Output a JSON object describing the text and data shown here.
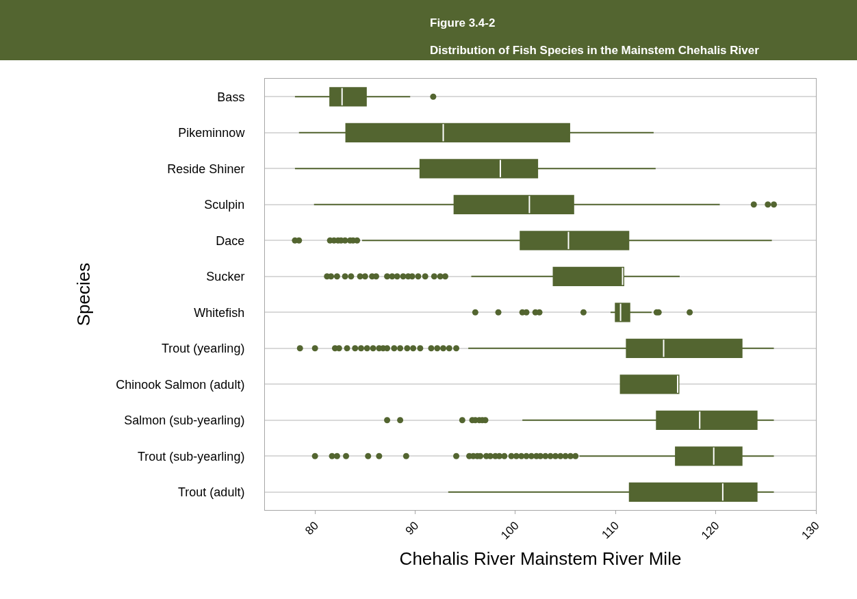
{
  "chart_data": {
    "type": "box",
    "title": "Figure 3.4-2",
    "subtitle": "Distribution of Fish Species in the Mainstem Chehalis River",
    "xlabel": "Chehalis River Mainstem River Mile",
    "ylabel": "Species",
    "orientation": "horizontal",
    "categories": [
      "Bass",
      "Pikeminnow",
      "Reside Shiner",
      "Sculpin",
      "Dace",
      "Sucker",
      "Whitefish",
      "Trout (yearling)",
      "Chinook Salmon (adult)",
      "Salmon (sub-yearling)",
      "Trout (sub-yearling)",
      "Trout (adult)"
    ],
    "color": "#536530",
    "boxes": [
      {
        "low": 78.0,
        "q1": 81.5,
        "median": 82.7,
        "q3": 85.1,
        "high": 89.5,
        "outliers": [
          91.8
        ]
      },
      {
        "low": 78.4,
        "q1": 83.1,
        "median": 92.8,
        "q3": 105.4,
        "high": 113.8
      },
      {
        "low": 78.0,
        "q1": 90.5,
        "median": 98.5,
        "q3": 102.2,
        "high": 114.0
      },
      {
        "low": 79.9,
        "q1": 93.9,
        "median": 101.4,
        "q3": 105.8,
        "high": 120.4,
        "outliers": [
          123.8,
          125.2,
          125.8
        ]
      },
      {
        "low": 84.7,
        "q1": 100.5,
        "median": 105.3,
        "q3": 111.3,
        "high": 125.6,
        "outliers": [
          78.0,
          78.4,
          81.5,
          81.9,
          82.3,
          82.6,
          83.0,
          83.5,
          83.8,
          84.2
        ]
      },
      {
        "low": 95.6,
        "q1": 103.8,
        "median": 110.7,
        "q3": 110.8,
        "high": 116.4,
        "outliers": [
          81.2,
          81.6,
          82.2,
          83.0,
          83.6,
          84.5,
          85.0,
          85.7,
          86.1,
          87.2,
          87.7,
          88.2,
          88.8,
          89.3,
          89.7,
          90.3,
          91.0,
          91.9,
          92.5,
          93.0
        ]
      },
      {
        "low": 109.5,
        "q1": 110.0,
        "median": 110.5,
        "q3": 111.4,
        "high": 113.6,
        "outliers": [
          96.0,
          98.3,
          100.7,
          101.1,
          102.0,
          102.4,
          106.8,
          114.1,
          114.3,
          117.4
        ]
      },
      {
        "low": 95.3,
        "q1": 111.1,
        "median": 114.8,
        "q3": 122.6,
        "high": 125.8,
        "outliers": [
          78.5,
          80.0,
          82.0,
          82.4,
          83.2,
          84.0,
          84.6,
          85.2,
          85.8,
          86.4,
          86.8,
          87.2,
          87.9,
          88.5,
          89.2,
          89.8,
          90.5,
          91.6,
          92.2,
          92.8,
          93.4,
          94.1
        ]
      },
      {
        "low": 110.5,
        "q1": 110.5,
        "median": 116.2,
        "q3": 116.3,
        "high": 116.3
      },
      {
        "low": 100.7,
        "q1": 114.1,
        "median": 118.4,
        "q3": 124.1,
        "high": 125.8,
        "outliers": [
          87.2,
          88.5,
          94.7,
          95.7,
          96.0,
          96.4,
          96.7,
          97.0
        ]
      },
      {
        "low": 106.4,
        "q1": 116.0,
        "median": 119.8,
        "q3": 122.6,
        "high": 125.8,
        "outliers": [
          80.0,
          81.7,
          82.2,
          83.1,
          85.3,
          86.4,
          89.1,
          94.1,
          95.4,
          95.8,
          96.2,
          96.5,
          97.1,
          97.5,
          98.0,
          98.4,
          98.9,
          99.6,
          100.1,
          100.6,
          101.1,
          101.6,
          102.1,
          102.5,
          103.0,
          103.5,
          104.0,
          104.5,
          105.0,
          105.5,
          106.0
        ]
      },
      {
        "low": 93.3,
        "q1": 111.4,
        "median": 120.7,
        "q3": 124.1,
        "high": 125.8
      }
    ],
    "xlim": [
      75,
      130
    ],
    "xticks": [
      80,
      90,
      100,
      110,
      120,
      130
    ],
    "grid": "y"
  }
}
